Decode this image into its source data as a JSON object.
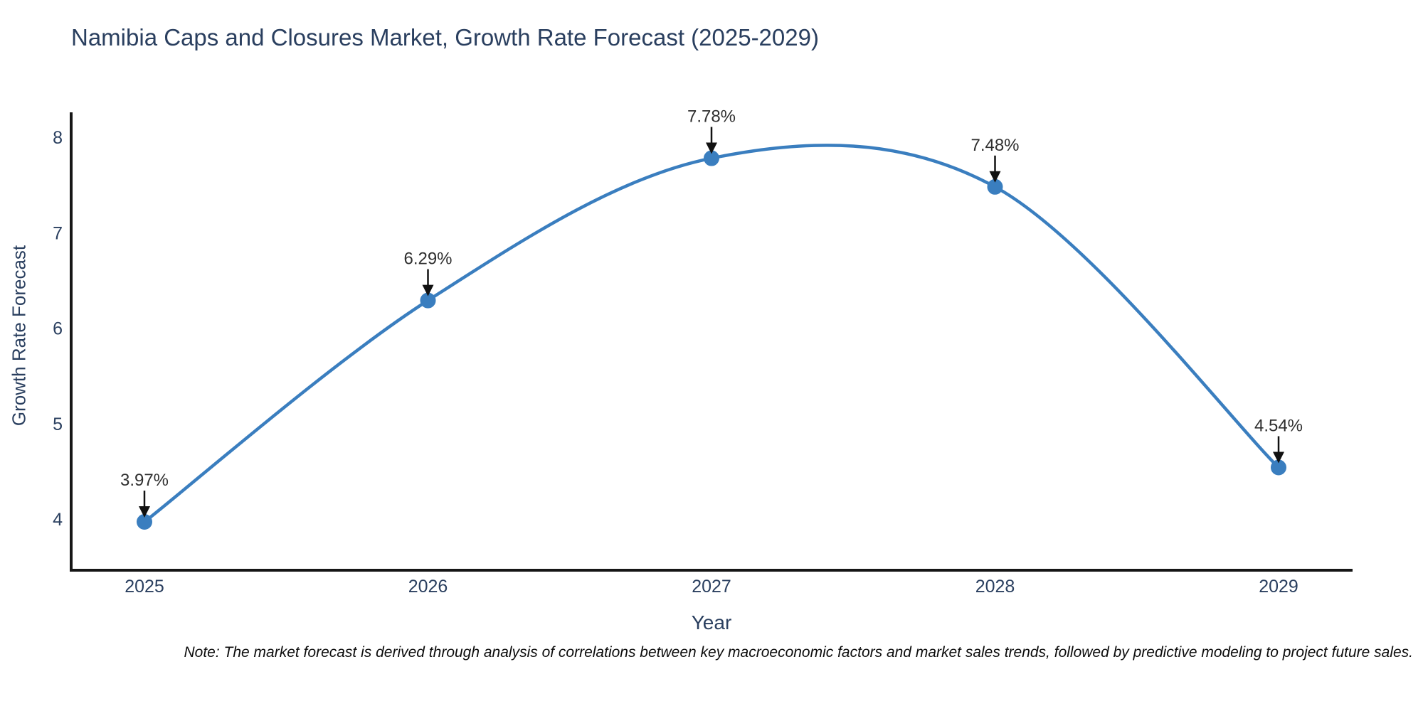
{
  "chart_data": {
    "type": "line",
    "title": "Namibia Caps and Closures Market, Growth Rate Forecast (2025-2029)",
    "xlabel": "Year",
    "ylabel": "Growth Rate Forecast",
    "categories": [
      "2025",
      "2026",
      "2027",
      "2028",
      "2029"
    ],
    "x": [
      2025,
      2026,
      2027,
      2028,
      2029
    ],
    "values": [
      3.97,
      6.29,
      7.78,
      7.48,
      4.54
    ],
    "annotations": [
      "3.97%",
      "6.29%",
      "7.78%",
      "7.48%",
      "4.54%"
    ],
    "yticks": [
      4,
      5,
      6,
      7,
      8
    ],
    "ylim": [
      3.5,
      8.3
    ],
    "grid": false,
    "legend_position": "none",
    "line_shape": "spline",
    "colors": {
      "line": "#3a7ebf",
      "marker": "#3a7ebf",
      "axis": "#161616",
      "axis_text": "#2a3f5f",
      "annotation_text": "#2f2f2f",
      "annotation_arrow": "#111111",
      "background": "#ffffff"
    }
  },
  "note": {
    "text": "Note: The market forecast is derived through analysis of correlations between key macroeconomic factors and market sales trends, followed by predictive modeling to project future sales."
  }
}
